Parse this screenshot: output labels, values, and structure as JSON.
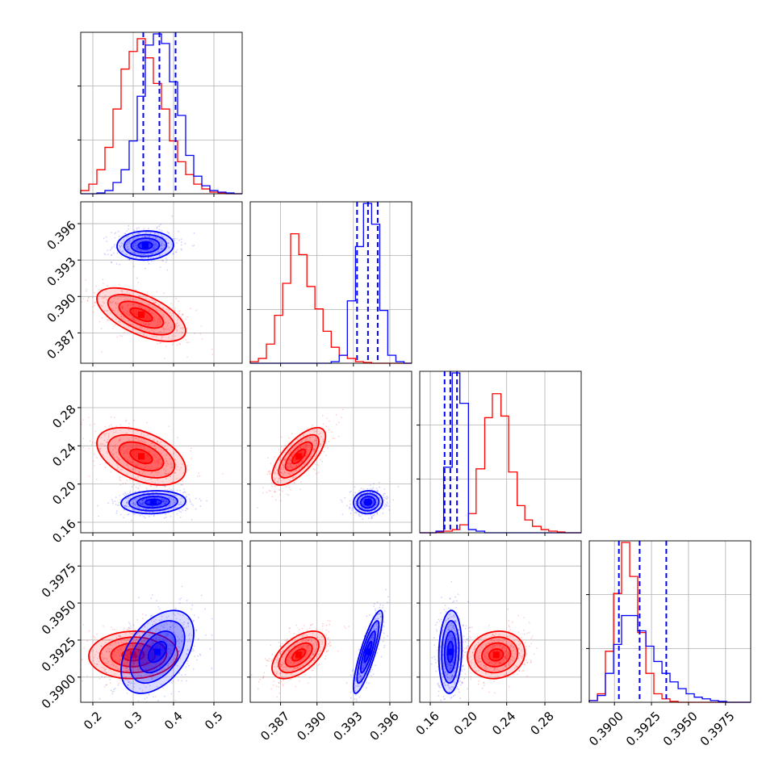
{
  "colors": {
    "series_a": "#ff0000",
    "series_b": "#0000ff",
    "grid": "#b0b0b0",
    "frame": "#000000"
  },
  "chart_data": {
    "type": "corner",
    "title": "",
    "grid": true,
    "params": [
      {
        "range": [
          0.17,
          0.57
        ],
        "ticks": [
          0.2,
          0.3,
          0.4,
          0.5
        ],
        "tick_labels": [
          "0.2",
          "0.3",
          "0.4",
          "0.5"
        ],
        "show_y_ticks": false
      },
      {
        "range": [
          0.3845,
          0.3978
        ],
        "ticks": [
          0.387,
          0.39,
          0.393,
          0.396
        ],
        "tick_labels": [
          "0.387",
          "0.390",
          "0.393",
          "0.396"
        ]
      },
      {
        "range": [
          0.149,
          0.318
        ],
        "ticks": [
          0.16,
          0.2,
          0.24,
          0.28
        ],
        "tick_labels": [
          "0.16",
          "0.20",
          "0.24",
          "0.28"
        ]
      },
      {
        "range": [
          0.3883,
          0.3992
        ],
        "ticks": [
          0.39,
          0.3925,
          0.395,
          0.3975
        ],
        "tick_labels": [
          "0.3900",
          "0.3925",
          "0.3950",
          "0.3975"
        ]
      }
    ],
    "series": [
      {
        "color": "red",
        "mean": [
          0.32,
          0.3885,
          0.229,
          0.3915
        ],
        "std": [
          0.055,
          0.0011,
          0.015,
          0.0008
        ],
        "quantiles": null
      },
      {
        "color": "blue",
        "mean": [
          0.365,
          0.3942,
          0.181,
          0.3917
        ],
        "std": [
          0.04,
          0.0006,
          0.006,
          0.0014
        ],
        "quantiles": [
          [
            0.325,
            0.365,
            0.405
          ],
          [
            0.3933,
            0.3942,
            0.395
          ],
          [
            0.175,
            0.181,
            0.188
          ],
          [
            0.3903,
            0.3917,
            0.3935
          ]
        ]
      }
    ],
    "histograms": [
      {
        "edges": [
          0.17,
          0.19,
          0.21,
          0.23,
          0.25,
          0.27,
          0.29,
          0.31,
          0.33,
          0.35,
          0.37,
          0.39,
          0.41,
          0.43,
          0.45,
          0.47,
          0.49,
          0.51,
          0.53,
          0.55,
          0.57
        ],
        "red": [
          0.02,
          0.06,
          0.15,
          0.29,
          0.53,
          0.78,
          0.89,
          0.97,
          0.85,
          0.69,
          0.53,
          0.33,
          0.2,
          0.12,
          0.06,
          0.03,
          0.01,
          0.005,
          0,
          0
        ],
        "blue": [
          0,
          0,
          0.005,
          0.02,
          0.07,
          0.15,
          0.33,
          0.61,
          0.93,
          1.0,
          0.94,
          0.7,
          0.49,
          0.24,
          0.11,
          0.05,
          0.02,
          0.01,
          0.005,
          0
        ]
      },
      {
        "edges": [
          0.3845,
          0.38517,
          0.38583,
          0.3865,
          0.38717,
          0.38783,
          0.3885,
          0.38917,
          0.38983,
          0.3905,
          0.39117,
          0.39183,
          0.3925,
          0.39317,
          0.39383,
          0.3945,
          0.39517,
          0.39583,
          0.3965,
          0.39717,
          0.3978
        ],
        "red": [
          0.01,
          0.03,
          0.12,
          0.3,
          0.5,
          0.81,
          0.68,
          0.48,
          0.34,
          0.2,
          0.1,
          0.05,
          0.03,
          0.01,
          0.005,
          0,
          0,
          0,
          0,
          0
        ],
        "blue": [
          0,
          0,
          0,
          0,
          0,
          0,
          0,
          0,
          0,
          0,
          0.01,
          0.05,
          0.39,
          0.73,
          1.0,
          0.87,
          0.33,
          0.05,
          0.01,
          0
        ]
      },
      {
        "edges": [
          0.149,
          0.157,
          0.166,
          0.174,
          0.183,
          0.191,
          0.2,
          0.208,
          0.217,
          0.225,
          0.234,
          0.242,
          0.251,
          0.259,
          0.267,
          0.276,
          0.284,
          0.293,
          0.301,
          0.31,
          0.318
        ],
        "red": [
          0,
          0,
          0.005,
          0.01,
          0.02,
          0.05,
          0.12,
          0.4,
          0.72,
          0.87,
          0.73,
          0.38,
          0.17,
          0.08,
          0.04,
          0.02,
          0.01,
          0.005,
          0,
          0
        ],
        "blue": [
          0,
          0,
          0.01,
          0.41,
          1.0,
          0.81,
          0.02,
          0.01,
          0,
          0,
          0,
          0,
          0,
          0,
          0,
          0,
          0,
          0,
          0,
          0
        ]
      },
      {
        "edges": [
          0.3883,
          0.38885,
          0.38939,
          0.38994,
          0.39048,
          0.39103,
          0.39157,
          0.39212,
          0.39266,
          0.39321,
          0.39375,
          0.3943,
          0.39484,
          0.39539,
          0.39593,
          0.39648,
          0.39702,
          0.39757,
          0.39811,
          0.39866,
          0.3992
        ],
        "red": [
          0.01,
          0.05,
          0.3,
          0.64,
          0.94,
          0.74,
          0.41,
          0.17,
          0.05,
          0.02,
          0.005,
          0,
          0,
          0,
          0,
          0,
          0,
          0,
          0,
          0
        ],
        "blue": [
          0.01,
          0.04,
          0.17,
          0.34,
          0.51,
          0.51,
          0.42,
          0.33,
          0.24,
          0.17,
          0.12,
          0.08,
          0.05,
          0.03,
          0.02,
          0.01,
          0.005,
          0,
          0,
          0
        ]
      }
    ],
    "pairs": [
      {
        "row": 1,
        "col": 0,
        "red": {
          "center": [
            0.32,
            0.3885
          ],
          "sd": [
            0.055,
            0.0011
          ],
          "rho": -0.6
        },
        "blue": {
          "center": [
            0.33,
            0.3942
          ],
          "sd": [
            0.035,
            0.0006
          ],
          "rho": 0.05
        }
      },
      {
        "row": 2,
        "col": 0,
        "red": {
          "center": [
            0.32,
            0.229
          ],
          "sd": [
            0.055,
            0.015
          ],
          "rho": -0.45
        },
        "blue": {
          "center": [
            0.35,
            0.181
          ],
          "sd": [
            0.04,
            0.006
          ],
          "rho": 0.1
        }
      },
      {
        "row": 2,
        "col": 1,
        "red": {
          "center": [
            0.3885,
            0.229
          ],
          "sd": [
            0.0011,
            0.015
          ],
          "rho": 0.7
        },
        "blue": {
          "center": [
            0.3942,
            0.181
          ],
          "sd": [
            0.0006,
            0.006
          ],
          "rho": 0.05
        }
      },
      {
        "row": 3,
        "col": 0,
        "red": {
          "center": [
            0.3,
            0.3915
          ],
          "sd": [
            0.055,
            0.0008
          ],
          "rho": 0.05
        },
        "blue": {
          "center": [
            0.36,
            0.3917
          ],
          "sd": [
            0.045,
            0.0014
          ],
          "rho": 0.45
        }
      },
      {
        "row": 3,
        "col": 1,
        "red": {
          "center": [
            0.3885,
            0.3915
          ],
          "sd": [
            0.0011,
            0.0008
          ],
          "rho": 0.55
        },
        "blue": {
          "center": [
            0.3942,
            0.3917
          ],
          "sd": [
            0.0006,
            0.0014
          ],
          "rho": 0.85
        }
      },
      {
        "row": 3,
        "col": 2,
        "red": {
          "center": [
            0.229,
            0.3915
          ],
          "sd": [
            0.015,
            0.0008
          ],
          "rho": 0.1
        },
        "blue": {
          "center": [
            0.181,
            0.3917
          ],
          "sd": [
            0.006,
            0.0014
          ],
          "rho": 0.1
        }
      }
    ],
    "contour_levels_sigma": [
      0.5,
      1.0,
      1.5,
      2.0
    ]
  }
}
